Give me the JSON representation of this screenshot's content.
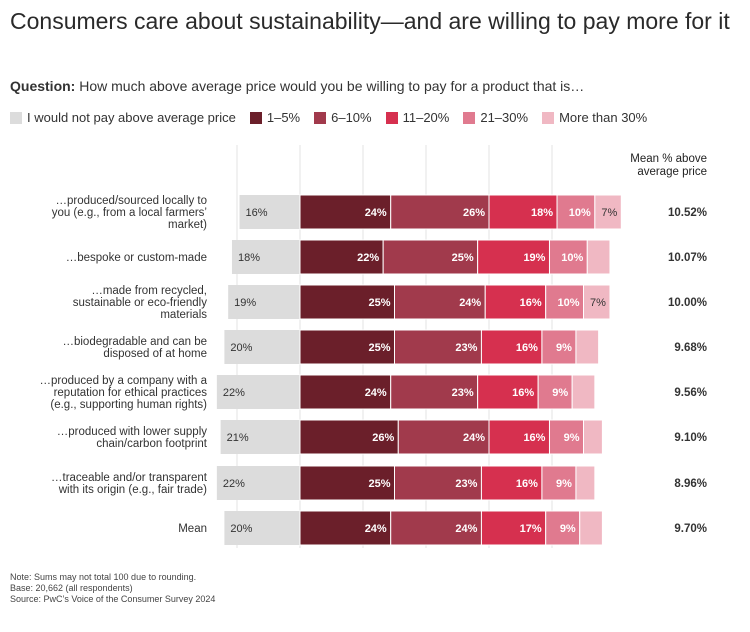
{
  "title": "Consumers care about sustainability—and are willing to pay more for it",
  "question_label": "Question:",
  "question_text": "How much above average price would you be willing to pay for a product that is…",
  "legend": [
    {
      "label": "I would not pay above average price",
      "color": "#dcdcdc"
    },
    {
      "label": "1–5%",
      "color": "#6b1f2a"
    },
    {
      "label": "6–10%",
      "color": "#a13a4c"
    },
    {
      "label": "11–20%",
      "color": "#d6304f"
    },
    {
      "label": "21–30%",
      "color": "#e07a8f"
    },
    {
      "label": "More than 30%",
      "color": "#f0b8c3"
    }
  ],
  "mean_header": "Mean % above average price",
  "footnotes": [
    "Note: Sums may not total 100 due to rounding.",
    "Base: 20,662 (all respondents)",
    "Source: PwC’s Voice of the Consumer Survey 2024"
  ],
  "chart_data": {
    "type": "bar",
    "orientation": "horizontal-stacked-diverging",
    "series_names": [
      "I would not pay above average price",
      "1–5%",
      "6–10%",
      "11–20%",
      "21–30%",
      "More than 30%"
    ],
    "categories": [
      {
        "label": "…produced/sourced locally to you (e.g., from a local farmers’ market)",
        "lines": [
          "…produced/sourced locally to",
          "you (e.g., from a local farmers’",
          "market)"
        ],
        "values": [
          16,
          24,
          26,
          18,
          10,
          7
        ],
        "mean": "10.52%"
      },
      {
        "label": "…bespoke or custom-made",
        "lines": [
          "…bespoke or custom-made"
        ],
        "values": [
          18,
          22,
          25,
          19,
          10,
          6
        ],
        "mean": "10.07%"
      },
      {
        "label": "…made from recycled, sustainable or eco-friendly materials",
        "lines": [
          "…made from recycled,",
          "sustainable or eco-friendly",
          "materials"
        ],
        "values": [
          19,
          25,
          24,
          16,
          10,
          7
        ],
        "mean": "10.00%"
      },
      {
        "label": "…biodegradable and can be disposed of at home",
        "lines": [
          "…biodegradable and can be",
          "disposed of at home"
        ],
        "values": [
          20,
          25,
          23,
          16,
          9,
          6
        ],
        "mean": "9.68%"
      },
      {
        "label": "…produced by a company with a reputation for ethical practices (e.g., supporting human rights)",
        "lines": [
          "…produced by a company with a",
          "reputation for ethical practices",
          "(e.g., supporting human rights)"
        ],
        "values": [
          22,
          24,
          23,
          16,
          9,
          6
        ],
        "mean": "9.56%"
      },
      {
        "label": "…produced with lower supply chain/carbon footprint",
        "lines": [
          "…produced with lower supply",
          "chain/carbon footprint"
        ],
        "values": [
          21,
          26,
          24,
          16,
          9,
          5
        ],
        "mean": "9.10%"
      },
      {
        "label": "…traceable and/or transparent with its origin (e.g., fair trade)",
        "lines": [
          "…traceable and/or transparent",
          "with its origin (e.g., fair trade)"
        ],
        "values": [
          22,
          25,
          23,
          16,
          9,
          5
        ],
        "mean": "8.96%"
      },
      {
        "label": "Mean",
        "lines": [
          "Mean"
        ],
        "values": [
          20,
          24,
          24,
          17,
          9,
          6
        ],
        "mean": "9.70%"
      }
    ],
    "hidden_labels": [
      [
        false,
        false,
        false,
        false,
        false,
        false
      ],
      [
        false,
        false,
        false,
        false,
        false,
        true
      ],
      [
        false,
        false,
        false,
        false,
        false,
        false
      ],
      [
        false,
        false,
        false,
        false,
        false,
        true
      ],
      [
        false,
        false,
        false,
        false,
        false,
        true
      ],
      [
        false,
        false,
        false,
        false,
        false,
        true
      ],
      [
        false,
        false,
        false,
        false,
        false,
        true
      ],
      [
        false,
        false,
        false,
        false,
        false,
        true
      ]
    ],
    "label_suffix": "%"
  }
}
